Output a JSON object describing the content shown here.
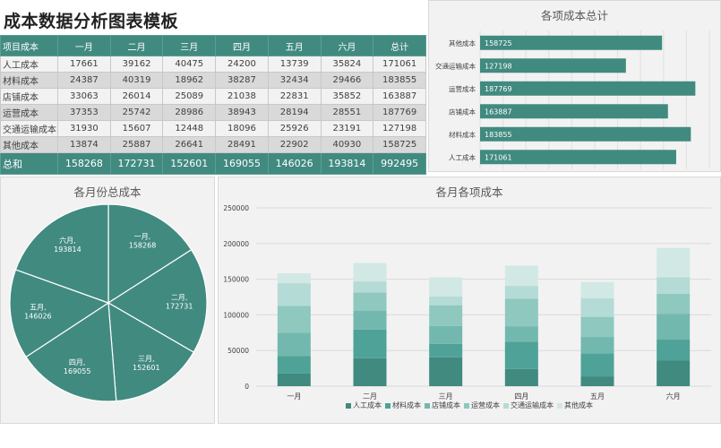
{
  "title": "成本数据分析图表模板",
  "table": {
    "headers": [
      "项目成本",
      "一月",
      "二月",
      "三月",
      "四月",
      "五月",
      "六月",
      "总计"
    ],
    "rows": [
      {
        "label": "人工成本",
        "values": [
          "17661",
          "39162",
          "40475",
          "24200",
          "13739",
          "35824",
          "171061"
        ]
      },
      {
        "label": "材料成本",
        "values": [
          "24387",
          "40319",
          "18962",
          "38287",
          "32434",
          "29466",
          "183855"
        ]
      },
      {
        "label": "店铺成本",
        "values": [
          "33063",
          "26014",
          "25089",
          "21038",
          "22831",
          "35852",
          "163887"
        ]
      },
      {
        "label": "运营成本",
        "values": [
          "37353",
          "25742",
          "28986",
          "38943",
          "28194",
          "28551",
          "187769"
        ]
      },
      {
        "label": "交通运输成本",
        "values": [
          "31930",
          "15607",
          "12448",
          "18096",
          "25926",
          "23191",
          "127198"
        ]
      },
      {
        "label": "其他成本",
        "values": [
          "13874",
          "25887",
          "26641",
          "28491",
          "22902",
          "40930",
          "158725"
        ]
      }
    ],
    "total": {
      "label": "总和",
      "values": [
        "158268",
        "172731",
        "152601",
        "169055",
        "146026",
        "193814",
        "992495"
      ]
    }
  },
  "colors": {
    "header": "#418a80",
    "series": [
      "#418a80",
      "#4fa297",
      "#72b8ae",
      "#8ec8bf",
      "#b4dbd5",
      "#d2e8e4"
    ]
  },
  "chart_data": [
    {
      "type": "bar",
      "orientation": "horizontal",
      "title": "各项成本总计",
      "categories": [
        "其他成本",
        "交通运输成本",
        "运营成本",
        "店铺成本",
        "材料成本",
        "人工成本"
      ],
      "values": [
        158725,
        127198,
        187769,
        163887,
        183855,
        171061
      ],
      "xlim": [
        0,
        200000
      ],
      "grid": true,
      "data_labels": true
    },
    {
      "type": "pie",
      "title": "各月份总成本",
      "categories": [
        "一月",
        "二月",
        "三月",
        "四月",
        "五月",
        "六月"
      ],
      "values": [
        158268,
        172731,
        152601,
        169055,
        146026,
        193814
      ],
      "data_labels": [
        "一月, 158268",
        "二月, 172731",
        "三月, 152601",
        "四月, 169055",
        "五月, 146026",
        "六月, 193814"
      ]
    },
    {
      "type": "bar",
      "stacked": true,
      "title": "各月各项成本",
      "categories": [
        "一月",
        "二月",
        "三月",
        "四月",
        "五月",
        "六月"
      ],
      "series": [
        {
          "name": "人工成本",
          "values": [
            17661,
            39162,
            40475,
            24200,
            13739,
            35824
          ]
        },
        {
          "name": "材料成本",
          "values": [
            24387,
            40319,
            18962,
            38287,
            32434,
            29466
          ]
        },
        {
          "name": "店铺成本",
          "values": [
            33063,
            26014,
            25089,
            21038,
            22831,
            35852
          ]
        },
        {
          "name": "运营成本",
          "values": [
            37353,
            25742,
            28986,
            38943,
            28194,
            28551
          ]
        },
        {
          "name": "交通运输成本",
          "values": [
            31930,
            15607,
            12448,
            18096,
            25926,
            23191
          ]
        },
        {
          "name": "其他成本",
          "values": [
            13874,
            25887,
            26641,
            28491,
            22902,
            40930
          ]
        }
      ],
      "yticks": [
        "0",
        "50000",
        "100000",
        "150000",
        "200000",
        "250000"
      ],
      "ylim": [
        0,
        250000
      ],
      "legend_position": "bottom",
      "grid": true
    }
  ]
}
